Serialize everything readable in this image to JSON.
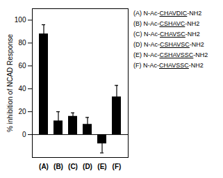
{
  "chart_data": {
    "type": "bar",
    "categories": [
      "(A)",
      "(B)",
      "(C)",
      "(D)",
      "(E)",
      "(F)"
    ],
    "values": [
      88,
      12,
      16,
      9,
      -8,
      33
    ],
    "errors": [
      8,
      8,
      3,
      6,
      8,
      10
    ],
    "color": "#000000",
    "ylabel": "% inhibition of NCAD Response",
    "ylim": [
      -20,
      110
    ],
    "yticks": [
      0,
      20,
      40,
      60,
      80,
      100
    ],
    "grid": false,
    "annotations": [
      {
        "prefix": "(A) N-Ac-",
        "underlined": "CHAVDIC",
        "suffix": "-NH2"
      },
      {
        "prefix": "(B) N-Ac-",
        "underlined": "CSHAVC",
        "suffix": "-NH2"
      },
      {
        "prefix": "(C) N-Ac-",
        "underlined": "CHAVSC",
        "suffix": "-NH2"
      },
      {
        "prefix": "(D) N-Ac-",
        "underlined": "CSHAVSC",
        "suffix": "-NH2"
      },
      {
        "prefix": "(E) N-Ac-",
        "underlined": "CSHAVSSC",
        "suffix": "-NH2"
      },
      {
        "prefix": "(F) N-Ac-",
        "underlined": "CHAVSSC",
        "suffix": "-NH2"
      }
    ]
  }
}
